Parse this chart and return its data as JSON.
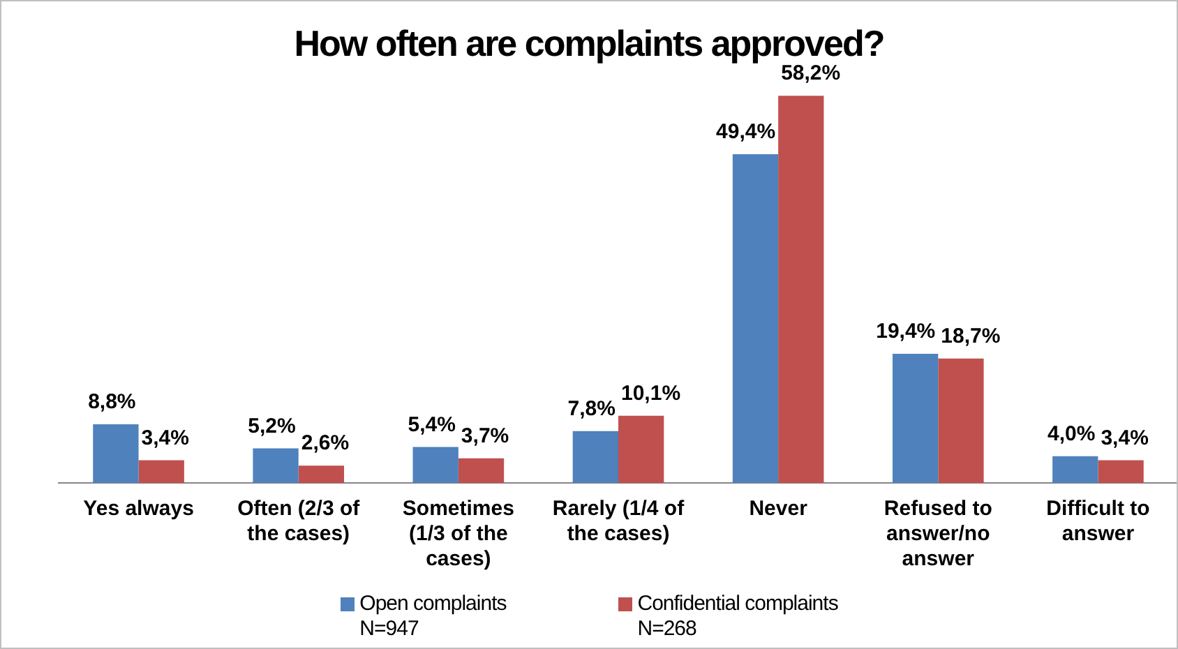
{
  "chart_data": {
    "type": "bar",
    "title": "How often are complaints approved?",
    "categories": [
      "Yes always",
      "Often (2/3 of the cases)",
      "Sometimes (1/3 of the cases)",
      "Rarely (1/4 of the cases)",
      "Never",
      "Refused to answer/no answer",
      "Difficult to answer"
    ],
    "series": [
      {
        "name": "Open complaints\nN=947",
        "color": "#4f81bd",
        "values": [
          8.8,
          5.2,
          5.4,
          7.8,
          49.4,
          19.4,
          4.0
        ],
        "value_labels": [
          "8,8%",
          "5,2%",
          "5,4%",
          "7,8%",
          "49,4%",
          "19,4%",
          "4,0%"
        ]
      },
      {
        "name": "Confidential complaints\nN=268",
        "color": "#c0504d",
        "values": [
          3.4,
          2.6,
          3.7,
          10.1,
          58.2,
          18.7,
          3.4
        ],
        "value_labels": [
          "3,4%",
          "2,6%",
          "3,7%",
          "10,1%",
          "58,2%",
          "18,7%",
          "3,4%"
        ]
      }
    ],
    "legend": "bottom",
    "grid": false
  }
}
